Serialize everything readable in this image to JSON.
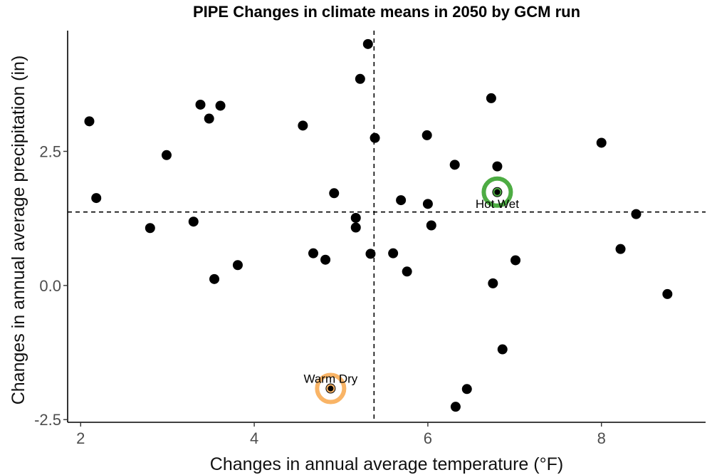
{
  "chart_data": {
    "type": "scatter",
    "title": "PIPE Changes in climate means in 2050 by GCM run",
    "xlabel": "Changes in annual average temperature (°F)",
    "ylabel": "Changes in annual average precipitation (in)",
    "xlim": [
      1.85,
      9.2
    ],
    "ylim": [
      -2.55,
      4.75
    ],
    "xticks": [
      2,
      4,
      6,
      8
    ],
    "xtick_labels": [
      "2",
      "4",
      "6",
      "8"
    ],
    "yticks": [
      -2.5,
      0.0,
      2.5
    ],
    "ytick_labels": [
      "-2.5",
      "0.0",
      "2.5"
    ],
    "grid": false,
    "point_color": "#000000",
    "reference_lines": {
      "x": 5.38,
      "y": 1.37,
      "style": "dashed"
    },
    "points": [
      {
        "x": 2.1,
        "y": 3.06
      },
      {
        "x": 2.18,
        "y": 1.63
      },
      {
        "x": 2.8,
        "y": 1.07
      },
      {
        "x": 2.99,
        "y": 2.43
      },
      {
        "x": 3.3,
        "y": 1.19
      },
      {
        "x": 3.38,
        "y": 3.37
      },
      {
        "x": 3.48,
        "y": 3.11
      },
      {
        "x": 3.54,
        "y": 0.12
      },
      {
        "x": 3.61,
        "y": 3.35
      },
      {
        "x": 3.81,
        "y": 0.38
      },
      {
        "x": 4.56,
        "y": 2.98
      },
      {
        "x": 4.68,
        "y": 0.6
      },
      {
        "x": 4.82,
        "y": 0.48
      },
      {
        "x": 4.88,
        "y": -1.92
      },
      {
        "x": 4.92,
        "y": 1.72
      },
      {
        "x": 5.17,
        "y": 1.26
      },
      {
        "x": 5.17,
        "y": 1.08
      },
      {
        "x": 5.22,
        "y": 3.85
      },
      {
        "x": 5.31,
        "y": 4.5
      },
      {
        "x": 5.34,
        "y": 0.59
      },
      {
        "x": 5.39,
        "y": 2.75
      },
      {
        "x": 5.6,
        "y": 0.6
      },
      {
        "x": 5.69,
        "y": 1.59
      },
      {
        "x": 5.76,
        "y": 0.26
      },
      {
        "x": 5.99,
        "y": 2.8
      },
      {
        "x": 6.0,
        "y": 1.52
      },
      {
        "x": 6.04,
        "y": 1.12
      },
      {
        "x": 6.31,
        "y": 2.25
      },
      {
        "x": 6.32,
        "y": -2.26
      },
      {
        "x": 6.45,
        "y": -1.93
      },
      {
        "x": 6.73,
        "y": 3.49
      },
      {
        "x": 6.75,
        "y": 0.04
      },
      {
        "x": 6.8,
        "y": 2.22
      },
      {
        "x": 6.8,
        "y": 1.74
      },
      {
        "x": 6.86,
        "y": -1.19
      },
      {
        "x": 7.01,
        "y": 0.47
      },
      {
        "x": 8.0,
        "y": 2.66
      },
      {
        "x": 8.22,
        "y": 0.68
      },
      {
        "x": 8.4,
        "y": 1.33
      },
      {
        "x": 8.76,
        "y": -0.16
      }
    ],
    "highlights": [
      {
        "label": "Hot Wet",
        "x": 6.8,
        "y": 1.74,
        "color": "#4dac43"
      },
      {
        "label": "Warm Dry",
        "x": 4.88,
        "y": -1.92,
        "color": "#f9b466"
      }
    ]
  }
}
